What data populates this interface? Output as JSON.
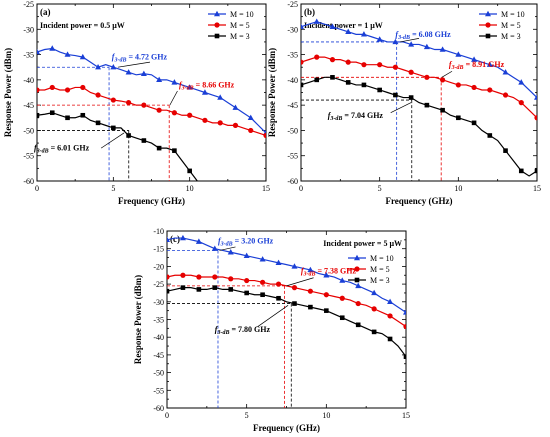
{
  "chart_data": [
    {
      "type": "line",
      "panel_label": "(a)",
      "title": "Incident power = 0.5 μW",
      "xlabel": "Frequency (GHz)",
      "ylabel": "Response Power (dBm)",
      "xlim": [
        0,
        15
      ],
      "ylim": [
        -60,
        -25
      ],
      "xticks": [
        0,
        5,
        10,
        15
      ],
      "yticks": [
        -60,
        -55,
        -50,
        -45,
        -40,
        -35,
        -30,
        -25
      ],
      "legend_position": "top-right",
      "series": [
        {
          "name": "M = 10",
          "color": "#1a3fd6",
          "marker": "triangle",
          "x": [
            0,
            0.5,
            1,
            1.5,
            2,
            2.5,
            3,
            3.5,
            4,
            4.5,
            5,
            5.5,
            6,
            6.5,
            7,
            7.5,
            8,
            8.5,
            9,
            9.5,
            10,
            10.5,
            11,
            11.5,
            12,
            12.5,
            13,
            13.5,
            14,
            14.5,
            15
          ],
          "y": [
            -34.5,
            -34,
            -33.8,
            -34.5,
            -35,
            -35.2,
            -35.5,
            -36.5,
            -37.5,
            -37,
            -37.5,
            -38,
            -38.5,
            -39,
            -38.8,
            -39,
            -40,
            -40,
            -40.5,
            -41,
            -41.5,
            -42,
            -42.5,
            -43,
            -43.5,
            -44.5,
            -45.5,
            -46.5,
            -47.5,
            -49,
            -50.5
          ]
        },
        {
          "name": "M = 5",
          "color": "#e60000",
          "marker": "circle",
          "x": [
            0,
            0.5,
            1,
            1.5,
            2,
            2.5,
            3,
            3.5,
            4,
            4.5,
            5,
            5.5,
            6,
            6.5,
            7,
            7.5,
            8,
            8.5,
            9,
            9.5,
            10,
            10.5,
            11,
            11.5,
            12,
            12.5,
            13,
            13.5,
            14,
            14.5,
            15
          ],
          "y": [
            -42,
            -42,
            -41.5,
            -42,
            -42,
            -41.5,
            -41.5,
            -42.5,
            -43,
            -43.5,
            -44,
            -44.2,
            -44.5,
            -45,
            -45,
            -45.5,
            -46,
            -46,
            -46.5,
            -47,
            -47,
            -47.5,
            -48,
            -48.5,
            -48.5,
            -49,
            -49,
            -49.5,
            -50,
            -50.5,
            -51
          ]
        },
        {
          "name": "M = 3",
          "color": "#000000",
          "marker": "square",
          "x": [
            0,
            0.5,
            1,
            1.5,
            2,
            2.5,
            3,
            3.5,
            4,
            4.5,
            5,
            5.5,
            6,
            6.5,
            7,
            7.5,
            8,
            8.5,
            9,
            9.5,
            10,
            10.5
          ],
          "y": [
            -47,
            -46.8,
            -46.5,
            -47,
            -47.5,
            -47.5,
            -47,
            -48,
            -48.5,
            -49,
            -49.5,
            -49.5,
            -51,
            -51.5,
            -52,
            -52.5,
            -53.5,
            -53.5,
            -54,
            -56,
            -58,
            -60
          ]
        }
      ],
      "annotations": [
        {
          "main": "f",
          "sub": "3-dB",
          "value": "= 4.72 GHz",
          "color": "#1a3fd6",
          "x": 4.72,
          "level": -37.5
        },
        {
          "main": "f",
          "sub": "3-dB",
          "value": "= 8.66 GHz",
          "color": "#e60000",
          "x": 8.66,
          "level": -45
        },
        {
          "main": "f",
          "sub": "3-dB",
          "value": "= 6.01 GHz",
          "color": "#000000",
          "x": 6.01,
          "level": -50
        }
      ]
    },
    {
      "type": "line",
      "panel_label": "(b)",
      "title": "Incident power = 1 μW",
      "xlabel": "Frequency (GHz)",
      "ylabel": "Response Power (dBm)",
      "xlim": [
        0,
        15
      ],
      "ylim": [
        -60,
        -25
      ],
      "xticks": [
        0,
        5,
        10,
        15
      ],
      "yticks": [
        -60,
        -55,
        -50,
        -45,
        -40,
        -35,
        -30,
        -25
      ],
      "legend_position": "top-right",
      "series": [
        {
          "name": "M = 10",
          "color": "#1a3fd6",
          "marker": "triangle",
          "x": [
            0,
            0.5,
            1,
            1.5,
            2,
            2.5,
            3,
            3.5,
            4,
            4.5,
            5,
            5.5,
            6,
            6.5,
            7,
            7.5,
            8,
            8.5,
            9,
            9.5,
            10,
            10.5,
            11,
            11.5,
            12,
            12.5,
            13,
            13.5,
            14,
            14.5,
            15
          ],
          "y": [
            -29.5,
            -29,
            -28.5,
            -29,
            -29.5,
            -30,
            -30.5,
            -31,
            -31,
            -31.5,
            -32,
            -32.5,
            -32.5,
            -32.5,
            -33,
            -33,
            -33.5,
            -34,
            -34,
            -34.5,
            -35,
            -35.5,
            -36,
            -36.5,
            -37,
            -37.5,
            -38.5,
            -39.5,
            -40.5,
            -42,
            -43.5
          ]
        },
        {
          "name": "M = 5",
          "color": "#e60000",
          "marker": "circle",
          "x": [
            0,
            0.5,
            1,
            1.5,
            2,
            2.5,
            3,
            3.5,
            4,
            4.5,
            5,
            5.5,
            6,
            6.5,
            7,
            7.5,
            8,
            8.5,
            9,
            9.5,
            10,
            10.5,
            11,
            11.5,
            12,
            12.5,
            13,
            13.5,
            14,
            14.5,
            15
          ],
          "y": [
            -36.5,
            -36,
            -35.5,
            -35.5,
            -36,
            -36,
            -36.5,
            -36.5,
            -37,
            -37,
            -37,
            -37.5,
            -37.5,
            -38,
            -38.5,
            -39,
            -39.5,
            -39.5,
            -40,
            -40.5,
            -41,
            -41,
            -41.5,
            -42,
            -42,
            -42.5,
            -43,
            -43.5,
            -44.5,
            -46,
            -47.5
          ]
        },
        {
          "name": "M = 3",
          "color": "#000000",
          "marker": "square",
          "x": [
            0,
            0.5,
            1,
            1.5,
            2,
            2.5,
            3,
            3.5,
            4,
            4.5,
            5,
            5.5,
            6,
            6.5,
            7,
            7.5,
            8,
            8.5,
            9,
            9.5,
            10,
            10.5,
            11,
            11.5,
            12,
            12.5,
            13,
            13.5,
            14,
            14.5,
            15
          ],
          "y": [
            -41,
            -40.5,
            -40,
            -39.5,
            -39.5,
            -40,
            -40.5,
            -41,
            -41,
            -41.5,
            -42,
            -42.5,
            -43,
            -43.5,
            -43.5,
            -44.5,
            -45,
            -45.5,
            -46,
            -47,
            -47.5,
            -48,
            -48.5,
            -50,
            -51,
            -52,
            -54,
            -56,
            -58,
            -59,
            -58
          ]
        }
      ],
      "annotations": [
        {
          "main": "f",
          "sub": "3-dB",
          "value": "= 6.08 GHz",
          "color": "#1a3fd6",
          "x": 6.08,
          "level": -32.5
        },
        {
          "main": "f",
          "sub": "3-dB",
          "value": "= 8.91 GHz",
          "color": "#e60000",
          "x": 8.91,
          "level": -39.5
        },
        {
          "main": "f",
          "sub": "3-dB",
          "value": "= 7.04 GHz",
          "color": "#000000",
          "x": 7.04,
          "level": -44
        }
      ]
    },
    {
      "type": "line",
      "panel_label": "(c)",
      "title": "Incident power = 5 μW",
      "xlabel": "Frequency (GHz)",
      "ylabel": "Response Power (dBm)",
      "xlim": [
        0,
        15
      ],
      "ylim": [
        -60,
        -10
      ],
      "xticks": [
        0,
        5,
        10,
        15
      ],
      "yticks": [
        -60,
        -55,
        -50,
        -45,
        -40,
        -35,
        -30,
        -25,
        -20,
        -15,
        -10
      ],
      "legend_position": "top-right",
      "series": [
        {
          "name": "M = 10",
          "color": "#1a3fd6",
          "marker": "triangle",
          "x": [
            0,
            0.5,
            1,
            1.5,
            2,
            2.5,
            3,
            3.5,
            4,
            4.5,
            5,
            5.5,
            6,
            6.5,
            7,
            7.5,
            8,
            8.5,
            9,
            9.5,
            10,
            10.5,
            11,
            11.5,
            12,
            12.5,
            13,
            13.5,
            14,
            14.5,
            15
          ],
          "y": [
            -12.5,
            -12,
            -12,
            -12.5,
            -13,
            -14,
            -15,
            -15.5,
            -16,
            -16.5,
            -17,
            -17.5,
            -18,
            -18.5,
            -19,
            -19.5,
            -20,
            -20.5,
            -21,
            -22,
            -22.5,
            -23,
            -24,
            -24.5,
            -25.5,
            -26.5,
            -27.5,
            -29,
            -30,
            -31.5,
            -33
          ]
        },
        {
          "name": "M = 5",
          "color": "#e60000",
          "marker": "circle",
          "x": [
            0,
            0.5,
            1,
            1.5,
            2,
            2.5,
            3,
            3.5,
            4,
            4.5,
            5,
            5.5,
            6,
            6.5,
            7,
            7.5,
            8,
            8.5,
            9,
            9.5,
            10,
            10.5,
            11,
            11.5,
            12,
            12.5,
            13,
            13.5,
            14,
            14.5,
            15
          ],
          "y": [
            -23,
            -22.5,
            -22.5,
            -22.5,
            -23,
            -23,
            -23,
            -23,
            -23.5,
            -23.5,
            -24,
            -24,
            -24.5,
            -25,
            -25,
            -25.5,
            -26,
            -26.5,
            -27,
            -27.5,
            -28,
            -28.5,
            -29,
            -29.5,
            -30.5,
            -31,
            -32,
            -33,
            -34,
            -35.5,
            -37
          ]
        },
        {
          "name": "M = 3",
          "color": "#000000",
          "marker": "square",
          "x": [
            0,
            0.5,
            1,
            1.5,
            2,
            2.5,
            3,
            3.5,
            4,
            4.5,
            5,
            5.5,
            6,
            6.5,
            7,
            7.5,
            8,
            8.5,
            9,
            9.5,
            10,
            10.5,
            11,
            11.5,
            12,
            12.5,
            13,
            13.5,
            14,
            14.5,
            15
          ],
          "y": [
            -27,
            -26.5,
            -26,
            -26,
            -26.5,
            -26.5,
            -26,
            -26.5,
            -26.5,
            -27,
            -27.5,
            -28,
            -28,
            -28.5,
            -29,
            -30,
            -30.5,
            -31,
            -31.5,
            -32,
            -32.5,
            -33.5,
            -34.5,
            -35.5,
            -36.5,
            -37.5,
            -38.5,
            -39,
            -40.5,
            -42.5,
            -45.5
          ]
        }
      ],
      "annotations": [
        {
          "main": "f",
          "sub": "3-dB",
          "value": "= 3.20 GHz",
          "color": "#1a3fd6",
          "x": 3.2,
          "level": -15.5
        },
        {
          "main": "f",
          "sub": "3-dB",
          "value": "= 7.38 GHz",
          "color": "#e60000",
          "x": 7.38,
          "level": -25.5
        },
        {
          "main": "f",
          "sub": "3-dB",
          "value": "= 7.80 GHz",
          "color": "#000000",
          "x": 7.8,
          "level": -30.5
        }
      ]
    }
  ]
}
